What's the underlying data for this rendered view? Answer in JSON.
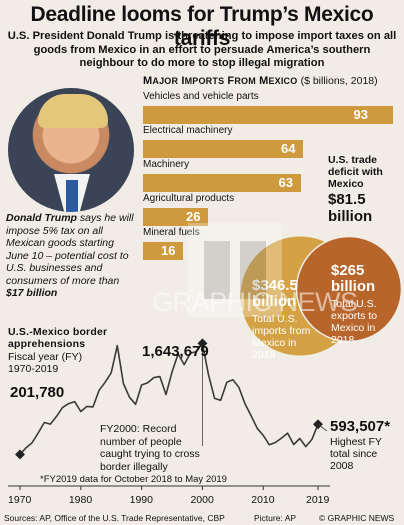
{
  "header": {
    "title": "Deadline looms for Trump’s Mexico tariffs",
    "subtitle": "U.S. President Donald Trump is threatening to impose import taxes on all goods from Mexico in an effort to persuade America’s southern neighbour to do more to stop illegal migration"
  },
  "quote": {
    "name": "Donald Trump",
    "text_before": " says he will impose 5% tax on all Mexican goods starting June 10 – potential cost to U.S. businesses and consumers of more than ",
    "amount": "$17 billion"
  },
  "watermark": {
    "text": "GRAPHIC NEWS"
  },
  "colors": {
    "bar": "#cf9a3e",
    "imports_circle": "#d4a244",
    "exports_circle": "#b8652c",
    "line": "#3a3a3a"
  },
  "chart_data": [
    {
      "type": "bar",
      "title": "Major imports from Mexico",
      "unit": "($ billions, 2018)",
      "categories": [
        "Vehicles and vehicle parts",
        "Electrical machinery",
        "Machinery",
        "Agricultural products",
        "Mineral fuels"
      ],
      "values": [
        93,
        64,
        63,
        26,
        16
      ],
      "xlim": [
        0,
        100
      ]
    },
    {
      "type": "pie",
      "title": "U.S. trade deficit with Mexico",
      "total": "$81.5 billion",
      "slices": [
        {
          "amount": "$346.5 billion",
          "label": "Total U.S. imports from Mexico in 2018",
          "value": 346.5
        },
        {
          "amount": "$265 billion",
          "label": "Total U.S. exports to Mexico in 2018",
          "value": 265
        }
      ]
    },
    {
      "type": "line",
      "title": "U.S.-Mexico border apprehensions",
      "subtitle": "Fiscal year (FY) 1970-2019",
      "x_ticks": [
        "1970",
        "1980",
        "1990",
        "2000",
        "2010",
        "2019"
      ],
      "xlim": [
        1970,
        2019
      ],
      "ylim": [
        0,
        1700000
      ],
      "x": [
        1970,
        1971,
        1972,
        1973,
        1974,
        1975,
        1976,
        1977,
        1978,
        1979,
        1980,
        1981,
        1982,
        1983,
        1984,
        1985,
        1986,
        1987,
        1988,
        1989,
        1990,
        1991,
        1992,
        1993,
        1994,
        1995,
        1996,
        1997,
        1998,
        1999,
        2000,
        2001,
        2002,
        2003,
        2004,
        2005,
        2006,
        2007,
        2008,
        2009,
        2010,
        2011,
        2012,
        2013,
        2014,
        2015,
        2016,
        2017,
        2018,
        2019
      ],
      "y": [
        201780,
        290000,
        355000,
        480000,
        616000,
        596000,
        696000,
        812000,
        862000,
        888000,
        759000,
        825000,
        819000,
        1034000,
        1138000,
        1262000,
        1615000,
        1122000,
        943000,
        852000,
        1103000,
        1132000,
        1199000,
        1212000,
        979000,
        1271000,
        1507000,
        1368000,
        1517000,
        1537000,
        1643679,
        1235718,
        929809,
        905065,
        1139282,
        1171396,
        1071972,
        858638,
        705005,
        540865,
        447731,
        327577,
        356873,
        414397,
        479371,
        331333,
        408870,
        303916,
        396579,
        593507
      ],
      "annotations": [
        {
          "x": 1970,
          "label": "201,780"
        },
        {
          "x": 2000,
          "label": "1,643,679"
        },
        {
          "x": 2000,
          "label": "FY2000: Record number of people caught trying to cross border illegally"
        },
        {
          "x": 2019,
          "label": "593,507*",
          "note": "Highest FY total since 2008"
        }
      ],
      "footnote": "*FY2019 data for October 2018 to May 2019"
    }
  ],
  "footer": {
    "sources": "Sources: AP, Office of the U.S. Trade Representative, CBP",
    "picture": "Picture: AP",
    "credit": "© GRAPHIC NEWS"
  }
}
